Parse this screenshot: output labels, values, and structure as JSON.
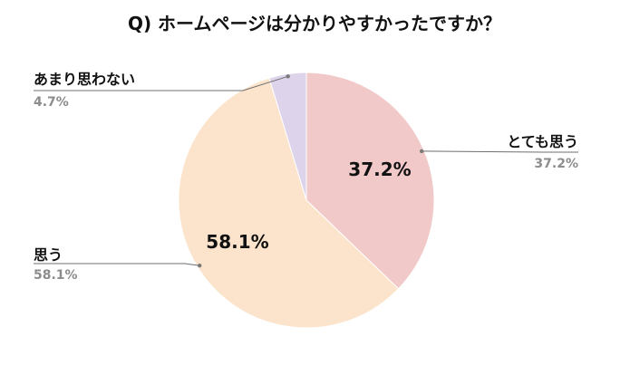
{
  "chart_data": {
    "type": "pie",
    "title": "Q) ホームページは分かりやすかったですか？",
    "slices": [
      {
        "label": "とても思う",
        "value": 37.2,
        "display_percent": "37.2%",
        "color": "#f2c9c9"
      },
      {
        "label": "思う",
        "value": 58.1,
        "display_percent": "58.1%",
        "color": "#fbe4cb"
      },
      {
        "label": "あまり思わない",
        "value": 4.7,
        "display_percent": "4.7%",
        "color": "#ddd3ea"
      }
    ],
    "legend": "outside",
    "grid": false
  }
}
